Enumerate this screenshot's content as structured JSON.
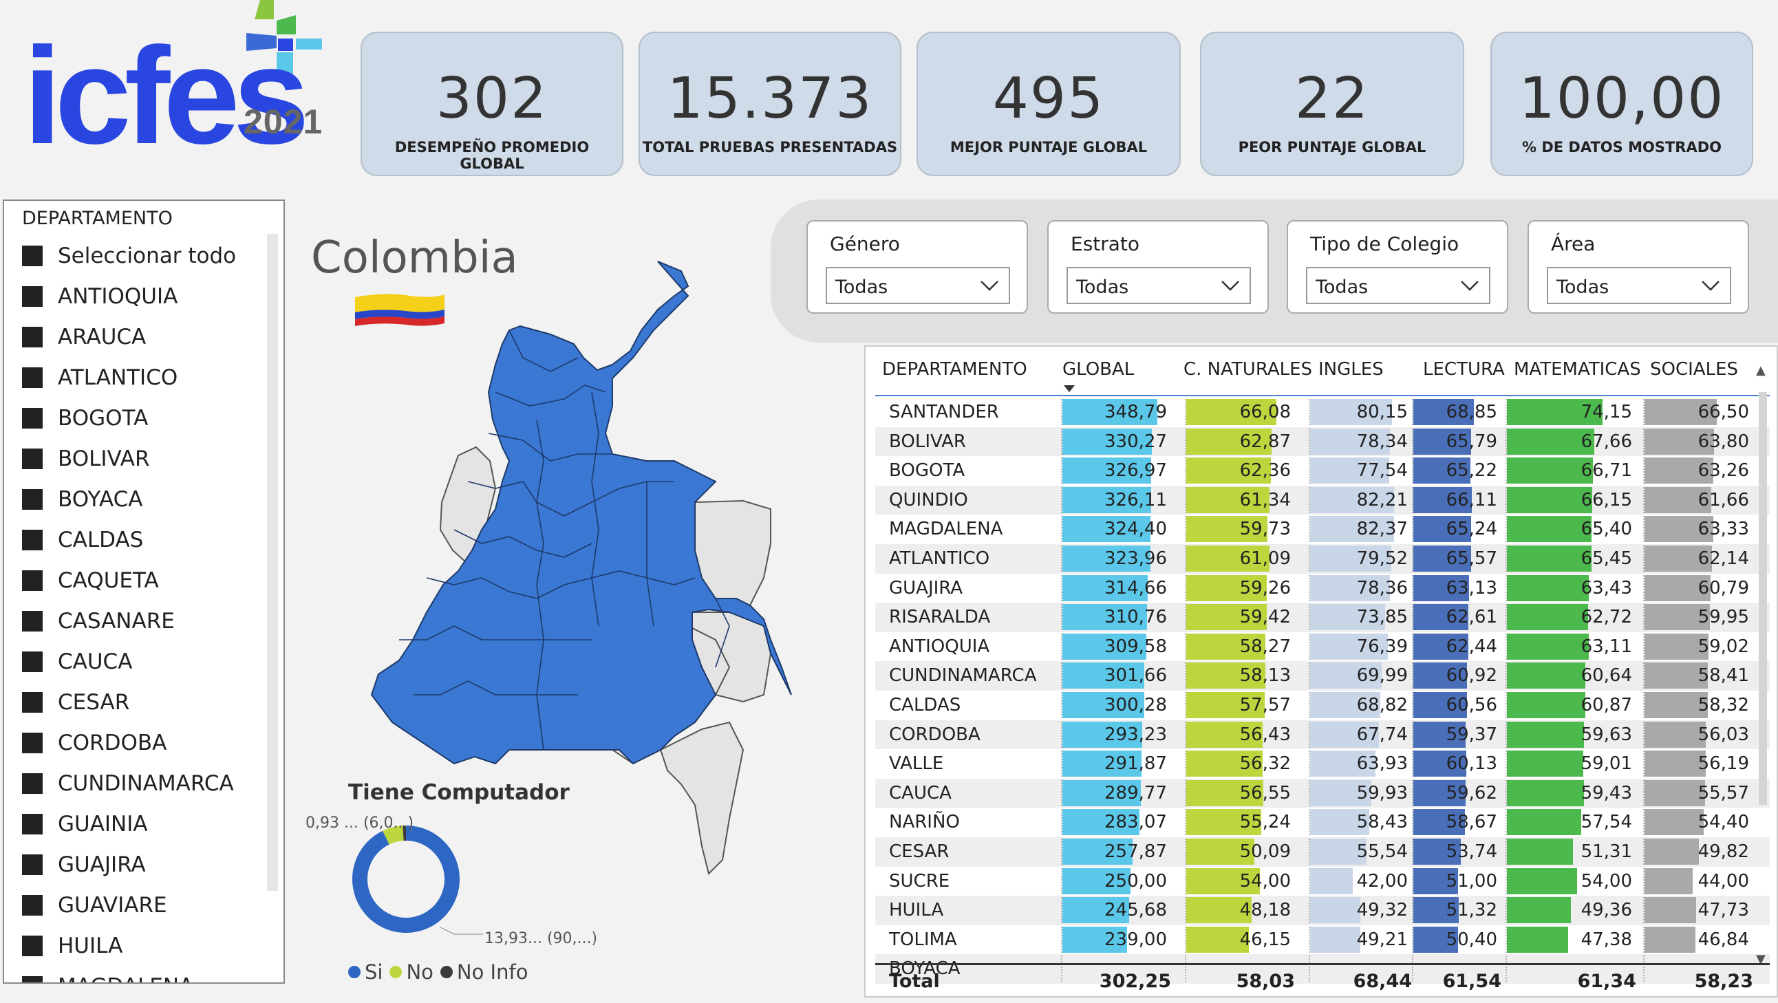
{
  "logo": {
    "brand": "icfes",
    "year": "2021"
  },
  "kpis": [
    {
      "value": "302",
      "label": "DESEMPEÑO PROMEDIO GLOBAL"
    },
    {
      "value": "15.373",
      "label": "TOTAL PRUEBAS PRESENTADAS"
    },
    {
      "value": "495",
      "label": "MEJOR PUNTAJE GLOBAL"
    },
    {
      "value": "22",
      "label": "PEOR PUNTAJE GLOBAL"
    },
    {
      "value": "100,00",
      "label": "% DE DATOS MOSTRADO"
    }
  ],
  "slicer": {
    "title": "DEPARTAMENTO",
    "items": [
      "Seleccionar todo",
      "ANTIOQUIA",
      "ARAUCA",
      "ATLANTICO",
      "BOGOTA",
      "BOLIVAR",
      "BOYACA",
      "CALDAS",
      "CAQUETA",
      "CASANARE",
      "CAUCA",
      "CESAR",
      "CORDOBA",
      "CUNDINAMARCA",
      "GUAINIA",
      "GUAJIRA",
      "GUAVIARE",
      "HUILA",
      "MAGDALENA"
    ]
  },
  "map": {
    "title": "Colombia",
    "highlight_color": "#3a78d4",
    "other_color": "#e4e4e4"
  },
  "filters": [
    {
      "label": "Género",
      "value": "Todas"
    },
    {
      "label": "Estrato",
      "value": "Todas"
    },
    {
      "label": "Tipo de Colegio",
      "value": "Todas"
    },
    {
      "label": "Área",
      "value": "Todas"
    }
  ],
  "table": {
    "columns": [
      "DEPARTAMENTO",
      "GLOBAL",
      "C. NATURALES",
      "INGLES",
      "LECTURA",
      "MATEMATICAS",
      "SOCIALES"
    ],
    "rows": [
      [
        "SANTANDER",
        "348,79",
        "66,08",
        "80,15",
        "68,85",
        "74,15",
        "66,50"
      ],
      [
        "BOLIVAR",
        "330,27",
        "62,87",
        "78,34",
        "65,79",
        "67,66",
        "63,80"
      ],
      [
        "BOGOTA",
        "326,97",
        "62,36",
        "77,54",
        "65,22",
        "66,71",
        "63,26"
      ],
      [
        "QUINDIO",
        "326,11",
        "61,34",
        "82,21",
        "66,11",
        "66,15",
        "61,66"
      ],
      [
        "MAGDALENA",
        "324,40",
        "59,73",
        "82,37",
        "65,24",
        "65,40",
        "63,33"
      ],
      [
        "ATLANTICO",
        "323,96",
        "61,09",
        "79,52",
        "65,57",
        "65,45",
        "62,14"
      ],
      [
        "GUAJIRA",
        "314,66",
        "59,26",
        "78,36",
        "63,13",
        "63,43",
        "60,79"
      ],
      [
        "RISARALDA",
        "310,76",
        "59,42",
        "73,85",
        "62,61",
        "62,72",
        "59,95"
      ],
      [
        "ANTIOQUIA",
        "309,58",
        "58,27",
        "76,39",
        "62,44",
        "63,11",
        "59,02"
      ],
      [
        "CUNDINAMARCA",
        "301,66",
        "58,13",
        "69,99",
        "60,92",
        "60,64",
        "58,41"
      ],
      [
        "CALDAS",
        "300,28",
        "57,57",
        "68,82",
        "60,56",
        "60,87",
        "58,32"
      ],
      [
        "CORDOBA",
        "293,23",
        "56,43",
        "67,74",
        "59,37",
        "59,63",
        "56,03"
      ],
      [
        "VALLE",
        "291,87",
        "56,32",
        "63,93",
        "60,13",
        "59,01",
        "56,19"
      ],
      [
        "CAUCA",
        "289,77",
        "56,55",
        "59,93",
        "59,62",
        "59,43",
        "55,57"
      ],
      [
        "NARIÑO",
        "283,07",
        "55,24",
        "58,43",
        "58,67",
        "57,54",
        "54,40"
      ],
      [
        "CESAR",
        "257,87",
        "50,09",
        "55,54",
        "53,74",
        "51,31",
        "49,82"
      ],
      [
        "SUCRE",
        "250,00",
        "54,00",
        "42,00",
        "51,00",
        "54,00",
        "44,00"
      ],
      [
        "HUILA",
        "245,68",
        "48,18",
        "49,32",
        "51,32",
        "49,36",
        "47,73"
      ],
      [
        "TOLIMA",
        "239,00",
        "46,15",
        "49,21",
        "50,40",
        "47,38",
        "46,84"
      ],
      [
        "BOYACA",
        "",
        "",
        "",
        "",
        "",
        ""
      ]
    ],
    "total": {
      "label": "Total",
      "values": [
        "302,25",
        "58,03",
        "68,44",
        "61,54",
        "61,34",
        "58,23"
      ]
    },
    "bar_colors": [
      "#5bc8ea",
      "#bcd63d",
      "#c9d6e8",
      "#4a6fb8",
      "#4cb94c",
      "#a9a9a9"
    ]
  },
  "donut": {
    "title": "Tiene Computador",
    "slices": [
      {
        "name": "Si",
        "value": 90.0,
        "color": "#2e66c4"
      },
      {
        "name": "No",
        "value": 6.0,
        "color": "#bcd63d"
      },
      {
        "name": "No Info",
        "value": 0.93,
        "color": "#3b3b3b"
      }
    ],
    "label_top": "0,93 ... (6,0...)",
    "label_bottom": "13,93... (90,...)"
  }
}
